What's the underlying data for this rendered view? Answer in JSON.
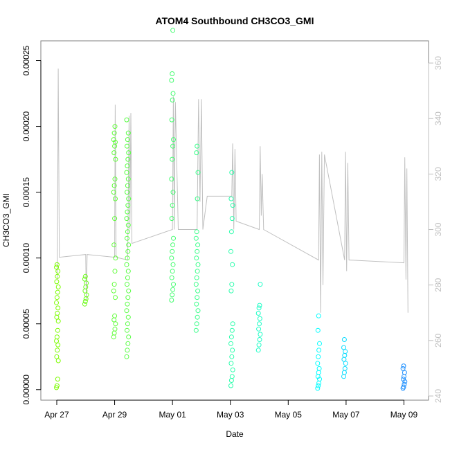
{
  "chart_data": {
    "type": "scatter",
    "title": "ATOM4 Southbound CH3CO3_GMI",
    "xlabel": "Date",
    "ylabel": "CH3CO3_GMI",
    "x_ticks": [
      "Apr 27",
      "Apr 29",
      "May 01",
      "May 03",
      "May 05",
      "May 07",
      "May 09"
    ],
    "y_ticks": [
      "0.00000",
      "0.00005",
      "0.00010",
      "0.00015",
      "0.00020",
      "0.00025"
    ],
    "y2_ticks": [
      "240",
      "260",
      "280",
      "300",
      "320",
      "340",
      "360"
    ],
    "xlim_days": [
      -0.55,
      12.85
    ],
    "ylim": [
      -8e-06,
      0.000265
    ],
    "y2lim": [
      238.5,
      368
    ],
    "grid": false,
    "colors": {
      "color_start": "#7cfc00",
      "color_mid": "#00ffff",
      "color_end": "#1e90ff",
      "secondary_line": "#c0c0c0",
      "frame": "#808080"
    },
    "scatter_groups": [
      {
        "x": 0.02,
        "y_values": [
          1.5e-06,
          3e-06,
          8e-06,
          2.2e-05,
          2.5e-05,
          3e-05,
          3.4e-05,
          3.7e-05,
          4e-05,
          4.5e-05,
          5.2e-05,
          5.5e-05,
          5.8e-05,
          6.2e-05,
          6.6e-05,
          7e-05,
          7.4e-05,
          7.8e-05,
          8.2e-05,
          8.6e-05,
          9e-05,
          9.3e-05,
          9.5e-05
        ]
      },
      {
        "x": 1.0,
        "y_values": [
          6.5e-05,
          6.7e-05,
          6.9e-05,
          7.2e-05,
          7.5e-05,
          7.8e-05,
          8.1e-05,
          8.4e-05,
          8.6e-05
        ]
      },
      {
        "x": 2.0,
        "y_values": [
          4e-05,
          4.3e-05,
          4.6e-05,
          5e-05,
          5.3e-05,
          5.6e-05,
          7e-05,
          7.5e-05,
          8e-05,
          9e-05,
          0.0001,
          0.00011,
          0.00013,
          0.000145,
          0.00015,
          0.000155,
          0.00016,
          0.000175,
          0.00018,
          0.000185,
          0.000188,
          0.00019,
          0.000195,
          0.0002
        ]
      },
      {
        "x": 2.45,
        "y_values": [
          2.5e-05,
          3e-05,
          3.5e-05,
          4e-05,
          4.5e-05,
          5e-05,
          5.5e-05,
          6e-05,
          6.5e-05,
          7e-05,
          7.5e-05,
          8e-05,
          8.5e-05,
          9e-05,
          9.5e-05,
          0.0001,
          0.000105,
          0.00011,
          0.000115,
          0.00012,
          0.000125,
          0.00013,
          0.000135,
          0.00014,
          0.000145,
          0.00015,
          0.000155,
          0.00016,
          0.000165,
          0.00017,
          0.000175,
          0.00018,
          0.000185,
          0.00019,
          0.000195,
          0.000205
        ]
      },
      {
        "x": 4.0,
        "y_values": [
          6.8e-05,
          7.2e-05,
          7.6e-05,
          8e-05,
          8.5e-05,
          9e-05,
          9.5e-05,
          0.0001,
          0.000105,
          0.00011,
          0.000115,
          0.00013,
          0.00014,
          0.00015,
          0.00016,
          0.000175,
          0.000185,
          0.00019,
          0.000205,
          0.00022,
          0.000225,
          0.000235,
          0.00024,
          0.000273
        ]
      },
      {
        "x": 4.85,
        "y_values": [
          4.5e-05,
          5e-05,
          5.5e-05,
          6e-05,
          6.5e-05,
          7e-05,
          7.5e-05,
          8e-05,
          8.5e-05,
          9e-05,
          9.5e-05,
          0.0001,
          0.000105,
          0.00011,
          0.000115,
          0.00012,
          0.000145,
          0.000165,
          0.00018,
          0.000185
        ]
      },
      {
        "x": 6.05,
        "y_values": [
          3e-06,
          7e-06,
          1e-05,
          1.5e-05,
          2e-05,
          2.5e-05,
          3e-05,
          3.5e-05,
          4e-05,
          4.5e-05,
          5e-05,
          7.5e-05,
          8e-05,
          9.5e-05,
          0.000105,
          0.00012,
          0.00013,
          0.00014,
          0.000145,
          0.000165
        ]
      },
      {
        "x": 7.0,
        "y_values": [
          3e-05,
          3.4e-05,
          3.8e-05,
          4.2e-05,
          4.6e-05,
          5e-05,
          5.4e-05,
          5.8e-05,
          6.2e-05,
          6.4e-05,
          8e-05
        ]
      },
      {
        "x": 9.05,
        "y_values": [
          1e-06,
          3e-06,
          5e-06,
          8e-06,
          1e-05,
          1.3e-05,
          1.6e-05,
          2e-05,
          2.5e-05,
          3e-05,
          3.5e-05,
          4.5e-05,
          5.6e-05
        ]
      },
      {
        "x": 9.95,
        "y_values": [
          1e-05,
          1.3e-05,
          1.6e-05,
          2e-05,
          2.3e-05,
          2.6e-05,
          2.9e-05,
          3.2e-05,
          3.8e-05
        ]
      },
      {
        "x": 12.0,
        "y_values": [
          1e-06,
          2e-06,
          4e-06,
          6e-06,
          8e-06,
          1e-05,
          1.3e-05,
          1.6e-05,
          1.8e-05
        ]
      }
    ],
    "secondary_path": [
      [
        0.02,
        282
      ],
      [
        0.05,
        358
      ],
      [
        0.09,
        290
      ],
      [
        1.0,
        291
      ],
      [
        1.02,
        275
      ],
      [
        1.05,
        291
      ],
      [
        2.0,
        290
      ],
      [
        2.02,
        345
      ],
      [
        2.05,
        290
      ],
      [
        2.45,
        289
      ],
      [
        2.5,
        341
      ],
      [
        2.53,
        300
      ],
      [
        2.56,
        342
      ],
      [
        2.6,
        295
      ],
      [
        4.0,
        300
      ],
      [
        4.03,
        348
      ],
      [
        4.06,
        300
      ],
      [
        4.1,
        346
      ],
      [
        4.2,
        300
      ],
      [
        4.85,
        300
      ],
      [
        4.9,
        347
      ],
      [
        4.95,
        310
      ],
      [
        5.0,
        347
      ],
      [
        5.05,
        300
      ],
      [
        5.2,
        312
      ],
      [
        6.05,
        312
      ],
      [
        6.08,
        331
      ],
      [
        6.12,
        300
      ],
      [
        6.16,
        329
      ],
      [
        6.2,
        303
      ],
      [
        7.0,
        300
      ],
      [
        7.03,
        330
      ],
      [
        7.07,
        305
      ],
      [
        7.1,
        320
      ],
      [
        7.15,
        300
      ],
      [
        9.05,
        289
      ],
      [
        9.08,
        327
      ],
      [
        9.12,
        270
      ],
      [
        9.16,
        328
      ],
      [
        9.2,
        280
      ],
      [
        9.25,
        327
      ],
      [
        9.95,
        289
      ],
      [
        9.98,
        328
      ],
      [
        10.02,
        285
      ],
      [
        10.06,
        324
      ],
      [
        10.1,
        289
      ],
      [
        12.0,
        288
      ],
      [
        12.03,
        326
      ],
      [
        12.07,
        282
      ],
      [
        12.1,
        322
      ],
      [
        12.14,
        270
      ]
    ]
  }
}
